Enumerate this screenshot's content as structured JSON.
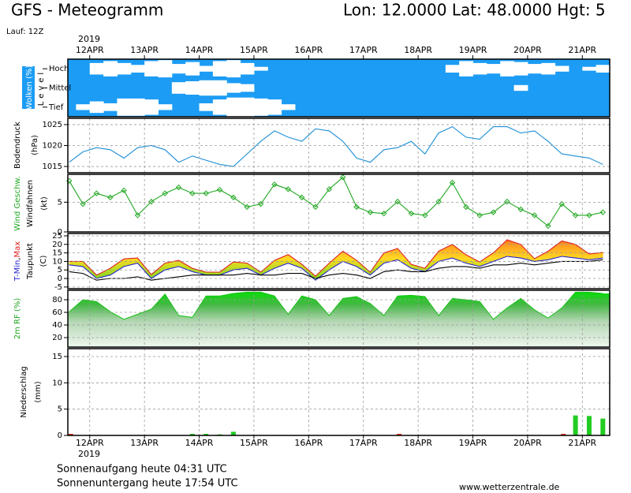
{
  "header": {
    "title": "GFS - Meteogramm",
    "location": "Lon: 12.0000 Lat: 48.0000 Hgt: 5",
    "run": "Lauf: 12Z"
  },
  "time": {
    "year": "2019",
    "xlim": [
      -0.4,
      9.5
    ],
    "xticks": [
      {
        "value": 0,
        "label": "12APR"
      },
      {
        "value": 1,
        "label": "13APR"
      },
      {
        "value": 2,
        "label": "14APR"
      },
      {
        "value": 3,
        "label": "15APR"
      },
      {
        "value": 4,
        "label": "16APR"
      },
      {
        "value": 5,
        "label": "17APR"
      },
      {
        "value": 6,
        "label": "18APR"
      },
      {
        "value": 7,
        "label": "19APR"
      },
      {
        "value": 8,
        "label": "20APR"
      },
      {
        "value": 9,
        "label": "21APR"
      }
    ],
    "x": [
      -0.375,
      -0.125,
      0.125,
      0.375,
      0.625,
      0.875,
      1.125,
      1.375,
      1.625,
      1.875,
      2.125,
      2.375,
      2.625,
      2.875,
      3.125,
      3.375,
      3.625,
      3.875,
      4.125,
      4.375,
      4.625,
      4.875,
      5.125,
      5.375,
      5.625,
      5.875,
      6.125,
      6.375,
      6.625,
      6.875,
      7.125,
      7.375,
      7.625,
      7.875,
      8.125,
      8.375,
      8.625,
      8.875,
      9.125,
      9.375
    ]
  },
  "chart_data": [
    {
      "type": "heatmap",
      "ylabel": "Wolken (%)",
      "axis_label": "Level",
      "background": "#1c9cf4",
      "color": "#ffffff",
      "vlim": [
        0,
        100
      ],
      "series": [
        {
          "name": "Hoch",
          "values": [
            0,
            0,
            60,
            80,
            60,
            40,
            80,
            90,
            50,
            70,
            30,
            80,
            90,
            60,
            20,
            0,
            0,
            0,
            0,
            0,
            0,
            0,
            0,
            0,
            0,
            0,
            0,
            0,
            40,
            80,
            60,
            50,
            80,
            70,
            50,
            60,
            30,
            0,
            20,
            40
          ]
        },
        {
          "name": "Mittel",
          "values": [
            0,
            0,
            0,
            0,
            0,
            0,
            0,
            0,
            60,
            70,
            80,
            80,
            50,
            40,
            0,
            0,
            0,
            0,
            0,
            0,
            0,
            0,
            0,
            0,
            0,
            0,
            0,
            0,
            0,
            0,
            0,
            0,
            0,
            30,
            0,
            0,
            0,
            0,
            0,
            0
          ]
        },
        {
          "name": "Tief",
          "values": [
            0,
            30,
            60,
            40,
            90,
            90,
            80,
            30,
            0,
            0,
            40,
            80,
            100,
            100,
            90,
            80,
            30,
            0,
            0,
            0,
            0,
            0,
            0,
            0,
            0,
            0,
            0,
            0,
            0,
            0,
            0,
            0,
            0,
            0,
            0,
            0,
            0,
            0,
            0,
            0
          ]
        }
      ]
    },
    {
      "type": "line",
      "ylabel": [
        "Bodendruck",
        "(hPa)"
      ],
      "ylim": [
        1013.5,
        1026.5
      ],
      "yticks": [
        1015,
        1020,
        1025
      ],
      "grid": true,
      "series": [
        {
          "color": "#1e8fd6",
          "values": [
            1016,
            1018.5,
            1019.5,
            1019,
            1017,
            1019.5,
            1020,
            1019,
            1016,
            1017.5,
            1016.5,
            1015.5,
            1015,
            1018,
            1021,
            1023.5,
            1022,
            1021,
            1024,
            1023.5,
            1021,
            1017,
            1016,
            1019,
            1019.5,
            1021,
            1018,
            1023,
            1024.5,
            1022,
            1021.5,
            1024.5,
            1024.5,
            1023,
            1023.5,
            1021,
            1018,
            1017.5,
            1017,
            1015.5
          ]
        }
      ]
    },
    {
      "type": "line",
      "ylabel": [
        "Windfahnen",
        "(kt)"
      ],
      "ylim": [
        0,
        9.7
      ],
      "yticks": [
        0,
        5
      ],
      "grid": true,
      "markers": true,
      "series": [
        {
          "name": "Wind Geschw.",
          "color": "#22a822",
          "values": [
            8.6,
            4.7,
            6.5,
            5.8,
            7,
            2.8,
            5.1,
            6.5,
            7.5,
            6.5,
            6.5,
            7.1,
            5.8,
            4.2,
            4.7,
            8,
            7.2,
            5.8,
            4.2,
            7.2,
            9.2,
            4.2,
            3.3,
            3.1,
            5.1,
            3.1,
            2.8,
            5.1,
            8.3,
            4.2,
            2.8,
            3.3,
            5.1,
            3.8,
            2.8,
            1,
            4.7,
            2.8,
            2.8,
            3.3
          ]
        }
      ]
    },
    {
      "type": "line",
      "ylabel": [
        "Taupunkt",
        "(C)"
      ],
      "ylabel_separator": ",",
      "ylim": [
        -6,
        26.4
      ],
      "yticks": [
        25,
        20,
        15,
        10,
        5,
        0,
        -5
      ],
      "grid": true,
      "fill_between": true,
      "series": [
        {
          "name": "Max",
          "color": "#e02020",
          "values": [
            10,
            10,
            2,
            6,
            11.5,
            12,
            2.3,
            9,
            10.6,
            6,
            3.7,
            3.7,
            9.7,
            9,
            3.7,
            10.6,
            14,
            8.3,
            1.4,
            9,
            16,
            10.6,
            3.7,
            15,
            17.6,
            8.3,
            6,
            16,
            20,
            13.9,
            9.7,
            15,
            22.7,
            20,
            11.6,
            16,
            22,
            20,
            14.4,
            15.3
          ]
        },
        {
          "name": "T-Min",
          "color": "#2424d0",
          "values": [
            8,
            7,
            0,
            2,
            7,
            9,
            0,
            5,
            7,
            4,
            2,
            2,
            5,
            6,
            2,
            6,
            9,
            6,
            -1,
            5,
            10,
            7,
            2,
            9,
            11,
            6,
            4,
            10,
            12,
            9,
            7,
            10,
            13,
            12,
            10,
            11,
            13,
            12,
            11,
            12
          ]
        },
        {
          "name": "Taupunkt",
          "color": "#000000",
          "values": [
            4,
            3,
            -1,
            0,
            0,
            1,
            -1,
            0,
            1,
            2,
            2,
            2,
            2,
            3,
            2,
            2,
            3,
            3,
            0,
            2,
            3,
            2,
            0,
            4,
            5,
            4,
            4,
            6,
            7,
            7,
            6,
            8,
            8,
            9,
            8,
            9,
            10,
            10,
            10,
            11
          ]
        }
      ]
    },
    {
      "type": "area",
      "ylabel": "2m RF (%)",
      "ylabel_color": "#22a822",
      "ylim": [
        5,
        95
      ],
      "yticks": [
        80,
        60,
        40,
        20
      ],
      "grid": true,
      "series": [
        {
          "color": "#18c018",
          "values": [
            61,
            80,
            77,
            61,
            49,
            57,
            65,
            89,
            55,
            52,
            86,
            86,
            90,
            92,
            92,
            86,
            57,
            86,
            80,
            55,
            82,
            85,
            74,
            55,
            86,
            87,
            85,
            55,
            82,
            80,
            77,
            49,
            67,
            82,
            64,
            51,
            67,
            92,
            92,
            90
          ]
        }
      ]
    },
    {
      "type": "bar",
      "ylabel": [
        "Niederschlag",
        "(mm)"
      ],
      "ylim": [
        0,
        16.5
      ],
      "yticks": [
        0,
        5,
        10,
        15
      ],
      "grid": true,
      "series": [
        {
          "color": "#22cc22",
          "values": [
            0,
            0,
            0,
            0,
            0,
            0,
            0,
            0,
            0,
            0.3,
            0.3,
            0.2,
            0.7,
            0,
            0,
            0,
            0,
            0,
            0,
            0,
            0,
            0,
            0,
            0,
            0,
            0,
            0,
            0,
            0,
            0,
            0,
            0,
            0,
            0,
            0,
            0,
            0,
            3.8,
            3.7,
            3.2
          ]
        },
        {
          "color": "#e03020",
          "values": [
            0.3,
            0,
            0,
            0,
            0,
            0,
            0,
            0,
            0,
            0,
            0,
            0,
            0,
            0,
            0,
            0,
            0,
            0,
            0,
            0,
            0,
            0,
            0,
            0,
            0.3,
            0,
            0,
            0,
            0,
            0,
            0,
            0,
            0,
            0,
            0,
            0,
            0.3,
            0,
            0,
            0
          ]
        }
      ]
    }
  ],
  "footer": {
    "sunrise": "Sonnenaufgang heute 04:31 UTC",
    "sunset": "Sonnenuntergang heute 17:54 UTC",
    "source": "www.wetterzentrale.de"
  }
}
